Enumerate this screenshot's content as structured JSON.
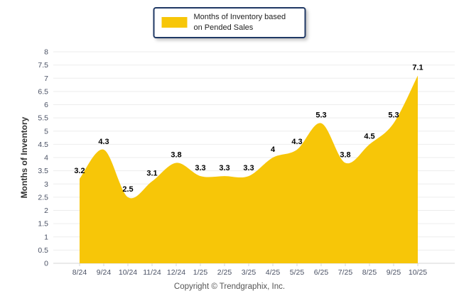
{
  "legend": {
    "label": "Months of Inventory based on Pended Sales"
  },
  "footer": {
    "copyright": "Copyright © Trendgraphix, Inc."
  },
  "chart_data": {
    "type": "area",
    "title": "",
    "xlabel": "",
    "ylabel": "Months of Inventory",
    "categories": [
      "8/24",
      "9/24",
      "10/24",
      "11/24",
      "12/24",
      "1/25",
      "2/25",
      "3/25",
      "4/25",
      "5/25",
      "6/25",
      "7/25",
      "8/25",
      "9/25",
      "10/25"
    ],
    "series": [
      {
        "name": "Months of Inventory based on Pended Sales",
        "values": [
          3.2,
          4.3,
          2.5,
          3.1,
          3.8,
          3.3,
          3.3,
          3.3,
          4,
          4.3,
          5.3,
          3.8,
          4.5,
          5.3,
          7.1
        ]
      }
    ],
    "ylim": [
      0,
      8
    ],
    "ytick_step": 0.5,
    "grid": true,
    "legend_position": "top-center",
    "colors": {
      "area_fill": "#F7C608",
      "legend_border": "#1F3864",
      "gridline": "#EDEDED",
      "axis_line": "#D6D6D6",
      "tick_label": "#4A5164",
      "data_label": "#000000",
      "axis_title": "#333333",
      "footer_text": "#555555"
    }
  }
}
